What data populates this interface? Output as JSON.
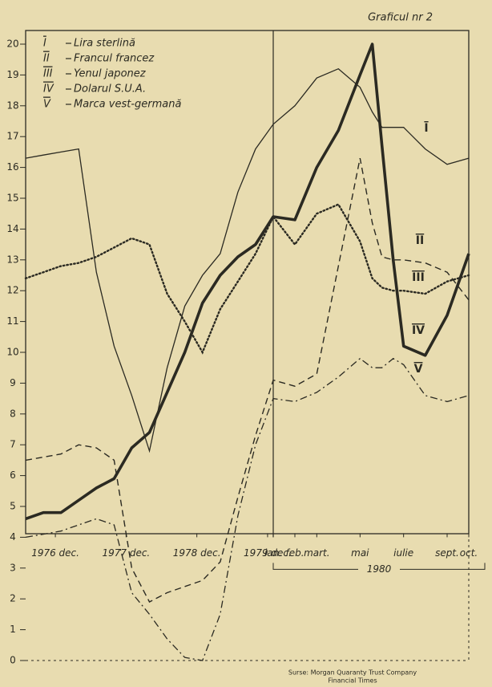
{
  "chart_data": {
    "type": "line",
    "title": "Graficul nr 2",
    "source": [
      "Surse: Morgan Quaranty Trust Company",
      "Financial Times"
    ],
    "x": [
      1976.5,
      1976.75,
      1977,
      1977.25,
      1977.5,
      1977.75,
      1978,
      1978.25,
      1978.5,
      1978.75,
      1979,
      1979.25,
      1979.5,
      1979.75,
      1980,
      1980.083,
      1980.167,
      1980.25,
      1980.333,
      1980.38,
      1980.417,
      1980.46,
      1980.5,
      1980.583,
      1980.667,
      1980.75
    ],
    "series": [
      {
        "label": "I",
        "name": "Lira sterlină",
        "color": "#2b2a22",
        "line_style": "solid",
        "values": [
          16.3,
          16.4,
          16.5,
          16.6,
          12.6,
          10.2,
          8.6,
          6.8,
          9.5,
          11.5,
          12.5,
          13.2,
          15.2,
          16.6,
          17.4,
          18.0,
          18.9,
          19.2,
          18.6,
          17.8,
          17.3,
          17.3,
          17.3,
          16.6,
          16.1,
          16.3
        ]
      },
      {
        "label": "II",
        "name": "Francul francez",
        "color": "#2b2a22",
        "line_style": "dashed",
        "values": [
          6.5,
          6.6,
          6.7,
          7.0,
          6.9,
          6.5,
          3.0,
          1.9,
          2.2,
          2.4,
          2.6,
          3.2,
          5.3,
          7.3,
          9.1,
          8.9,
          9.3,
          12.8,
          16.3,
          14.2,
          13.1,
          13.0,
          13.0,
          12.9,
          12.6,
          11.7
        ]
      },
      {
        "label": "III",
        "name": "Yenul japonez",
        "color": "#2b2a22",
        "line_style": "dotted",
        "values": [
          12.4,
          12.6,
          12.8,
          12.9,
          13.1,
          13.4,
          13.7,
          13.5,
          11.9,
          11.0,
          10.0,
          11.4,
          12.3,
          13.2,
          14.4,
          13.5,
          14.5,
          14.8,
          13.6,
          12.4,
          12.1,
          12.0,
          12.0,
          11.9,
          12.3,
          12.5
        ]
      },
      {
        "label": "IV",
        "name": "Dolarul S.U.A.",
        "color": "#2b2a22",
        "line_style": "bold",
        "values": [
          4.6,
          4.8,
          4.8,
          5.2,
          5.6,
          5.9,
          6.9,
          7.4,
          8.7,
          10.0,
          11.6,
          12.5,
          13.1,
          13.5,
          14.4,
          14.3,
          16.0,
          17.2,
          19.0,
          20.0,
          16.7,
          13.0,
          10.2,
          9.9,
          11.2,
          13.2
        ]
      },
      {
        "label": "V",
        "name": "Marca vest-germană",
        "color": "#2b2a22",
        "line_style": "dashdot",
        "values": [
          4.0,
          4.1,
          4.2,
          4.4,
          4.6,
          4.4,
          2.2,
          1.5,
          0.7,
          0.1,
          0.0,
          1.5,
          4.7,
          7.0,
          8.5,
          8.4,
          8.7,
          9.2,
          9.8,
          9.5,
          9.5,
          9.8,
          9.6,
          8.6,
          8.4,
          8.6
        ]
      }
    ],
    "xlim": [
      1976.5,
      1980.75
    ],
    "xticks": [
      {
        "value": 1976.92,
        "label": "1976 dec."
      },
      {
        "value": 1977.92,
        "label": "1977 dec."
      },
      {
        "value": 1978.92,
        "label": "1978 dec."
      },
      {
        "value": 1979.92,
        "label": "1979 dec."
      },
      {
        "value": 1980,
        "label": "ian."
      },
      {
        "value": 1980.083,
        "label": "feb."
      },
      {
        "value": 1980.167,
        "label": "mart."
      },
      {
        "value": 1980.333,
        "label": "mai"
      },
      {
        "value": 1980.5,
        "label": "iulie"
      },
      {
        "value": 1980.667,
        "label": "sept."
      },
      {
        "value": 1980.75,
        "label": "oct."
      }
    ],
    "period": {
      "label": "1980",
      "start": 1980,
      "end": 1980.75
    },
    "ylim": [
      0,
      20
    ],
    "yticks": [
      0,
      1,
      2,
      3,
      4,
      5,
      6,
      7,
      8,
      9,
      10,
      11,
      12,
      13,
      14,
      15,
      16,
      17,
      18,
      19,
      20
    ],
    "grid": false
  }
}
